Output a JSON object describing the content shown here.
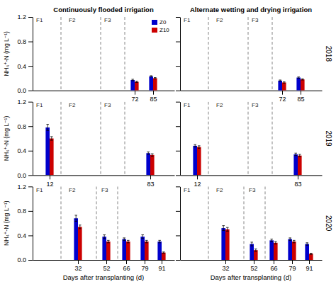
{
  "chart_data": [
    {
      "type": "bar",
      "title": "Continuously flooded irrigation",
      "ylabel": "NH₄⁺-N (mg L⁻¹)",
      "x": [
        72,
        85
      ],
      "xlim": [
        0,
        100
      ],
      "xticks": [
        72,
        85
      ],
      "ylim": [
        0,
        1.2
      ],
      "yticks": [
        {
          "value": 0.0,
          "label": "0.0"
        },
        0.4,
        0.8,
        1.2
      ],
      "series": [
        {
          "name": "Z0",
          "color": "#0000cc",
          "values": [
            0.17,
            0.23
          ],
          "errors": [
            0.012,
            0.01
          ]
        },
        {
          "name": "Z10",
          "color": "#cc0000",
          "values": [
            0.14,
            0.2
          ],
          "errors": [
            0.01,
            0.01
          ]
        }
      ],
      "vlines": [
        20,
        48,
        65
      ],
      "annotations": [
        {
          "text": "F1",
          "x": 2,
          "y": 1.18
        },
        {
          "text": "F2",
          "x": 25,
          "y": 1.18
        },
        {
          "text": "F3",
          "x": 50,
          "y": 1.18
        }
      ],
      "legend": "upper right"
    },
    {
      "type": "bar",
      "title": "Alternate wetting and drying irrigation",
      "subtitle": "2018",
      "x": [
        72,
        85
      ],
      "xlim": [
        0,
        100
      ],
      "xticks": [
        72,
        85
      ],
      "ylim": [
        0,
        1.2
      ],
      "yticks": [
        {
          "value": 0.0,
          "label": "0.0"
        },
        0.4,
        0.8,
        1.2
      ],
      "tick_labels": "x",
      "series": [
        {
          "name": "Z0",
          "color": "#0000cc",
          "values": [
            0.16,
            0.21
          ],
          "errors": [
            0.01,
            0.01
          ]
        },
        {
          "name": "Z10",
          "color": "#cc0000",
          "values": [
            0.13,
            0.18
          ],
          "errors": [
            0.01,
            0.01
          ]
        }
      ],
      "vlines": [
        20,
        48,
        65
      ],
      "annotations": [
        {
          "text": "F1",
          "x": 2,
          "y": 1.18
        },
        {
          "text": "F2",
          "x": 25,
          "y": 1.18
        },
        {
          "text": "F3",
          "x": 50,
          "y": 1.18
        }
      ]
    },
    {
      "type": "bar",
      "ylabel": "NH₄⁺-N (mg L⁻¹)",
      "x": [
        12,
        83
      ],
      "xlim": [
        0,
        100
      ],
      "xticks": [
        12,
        83
      ],
      "ylim": [
        0,
        1.2
      ],
      "yticks": [
        {
          "value": 0.0,
          "label": "0.0"
        },
        0.4,
        0.8,
        1.2
      ],
      "series": [
        {
          "name": "Z0",
          "color": "#0000cc",
          "values": [
            0.78,
            0.36
          ],
          "errors": [
            0.05,
            0.02
          ]
        },
        {
          "name": "Z10",
          "color": "#cc0000",
          "values": [
            0.6,
            0.33
          ],
          "errors": [
            0.03,
            0.02
          ]
        }
      ],
      "vlines": [
        20,
        48,
        65
      ],
      "annotations": [
        {
          "text": "F1",
          "x": 2,
          "y": 1.18
        },
        {
          "text": "F2",
          "x": 25,
          "y": 1.18
        },
        {
          "text": "F3",
          "x": 50,
          "y": 1.18
        }
      ]
    },
    {
      "type": "bar",
      "subtitle": "2019",
      "x": [
        12,
        83
      ],
      "xlim": [
        0,
        100
      ],
      "xticks": [
        12,
        83
      ],
      "ylim": [
        0,
        1.2
      ],
      "yticks": [
        {
          "value": 0.0,
          "label": "0.0"
        },
        0.4,
        0.8,
        1.2
      ],
      "tick_labels": "x",
      "series": [
        {
          "name": "Z0",
          "color": "#0000cc",
          "values": [
            0.48,
            0.34
          ],
          "errors": [
            0.02,
            0.02
          ]
        },
        {
          "name": "Z10",
          "color": "#cc0000",
          "values": [
            0.46,
            0.32
          ],
          "errors": [
            0.02,
            0.02
          ]
        }
      ],
      "vlines": [
        20,
        48,
        65
      ],
      "annotations": [
        {
          "text": "F1",
          "x": 2,
          "y": 1.18
        },
        {
          "text": "F2",
          "x": 25,
          "y": 1.18
        },
        {
          "text": "F3",
          "x": 50,
          "y": 1.18
        }
      ]
    },
    {
      "type": "bar",
      "xlabel": "Days after transplanting (d)",
      "ylabel": "NH₄⁺-N (mg L⁻¹)",
      "x": [
        32,
        52,
        66,
        79,
        91
      ],
      "xlim": [
        0,
        100
      ],
      "xticks": [
        32,
        52,
        66,
        79,
        91
      ],
      "ylim": [
        0,
        1.2
      ],
      "yticks": [
        {
          "value": 0.0,
          "label": "0.0"
        },
        0.4,
        0.8,
        1.2
      ],
      "series": [
        {
          "name": "Z0",
          "color": "#0000cc",
          "values": [
            0.68,
            0.38,
            0.34,
            0.38,
            0.3
          ],
          "errors": [
            0.05,
            0.03,
            0.02,
            0.03,
            0.02
          ]
        },
        {
          "name": "Z10",
          "color": "#cc0000",
          "values": [
            0.54,
            0.3,
            0.3,
            0.3,
            0.12
          ],
          "errors": [
            0.03,
            0.02,
            0.02,
            0.02,
            0.01
          ]
        }
      ],
      "vlines": [
        20,
        45,
        60
      ],
      "annotations": [
        {
          "text": "F1",
          "x": 2,
          "y": 1.18
        },
        {
          "text": "F2",
          "x": 25,
          "y": 1.18
        },
        {
          "text": "F3",
          "x": 48,
          "y": 1.18
        }
      ]
    },
    {
      "type": "bar",
      "subtitle": "2020",
      "xlabel": "Days after transplanting (d)",
      "x": [
        32,
        52,
        66,
        79,
        91
      ],
      "xlim": [
        0,
        100
      ],
      "xticks": [
        32,
        52,
        66,
        79,
        91
      ],
      "ylim": [
        0,
        1.2
      ],
      "yticks": [
        {
          "value": 0.0,
          "label": "0.0"
        },
        0.4,
        0.8,
        1.2
      ],
      "tick_labels": "x",
      "series": [
        {
          "name": "Z0",
          "color": "#0000cc",
          "values": [
            0.52,
            0.26,
            0.32,
            0.34,
            0.26
          ],
          "errors": [
            0.04,
            0.03,
            0.02,
            0.02,
            0.02
          ]
        },
        {
          "name": "Z10",
          "color": "#cc0000",
          "values": [
            0.5,
            0.16,
            0.28,
            0.3,
            0.1
          ],
          "errors": [
            0.03,
            0.02,
            0.02,
            0.02,
            0.01
          ]
        }
      ],
      "vlines": [
        20,
        45,
        60
      ],
      "annotations": [
        {
          "text": "F1",
          "x": 2,
          "y": 1.18
        },
        {
          "text": "F2",
          "x": 25,
          "y": 1.18
        },
        {
          "text": "F3",
          "x": 48,
          "y": 1.18
        }
      ]
    }
  ]
}
